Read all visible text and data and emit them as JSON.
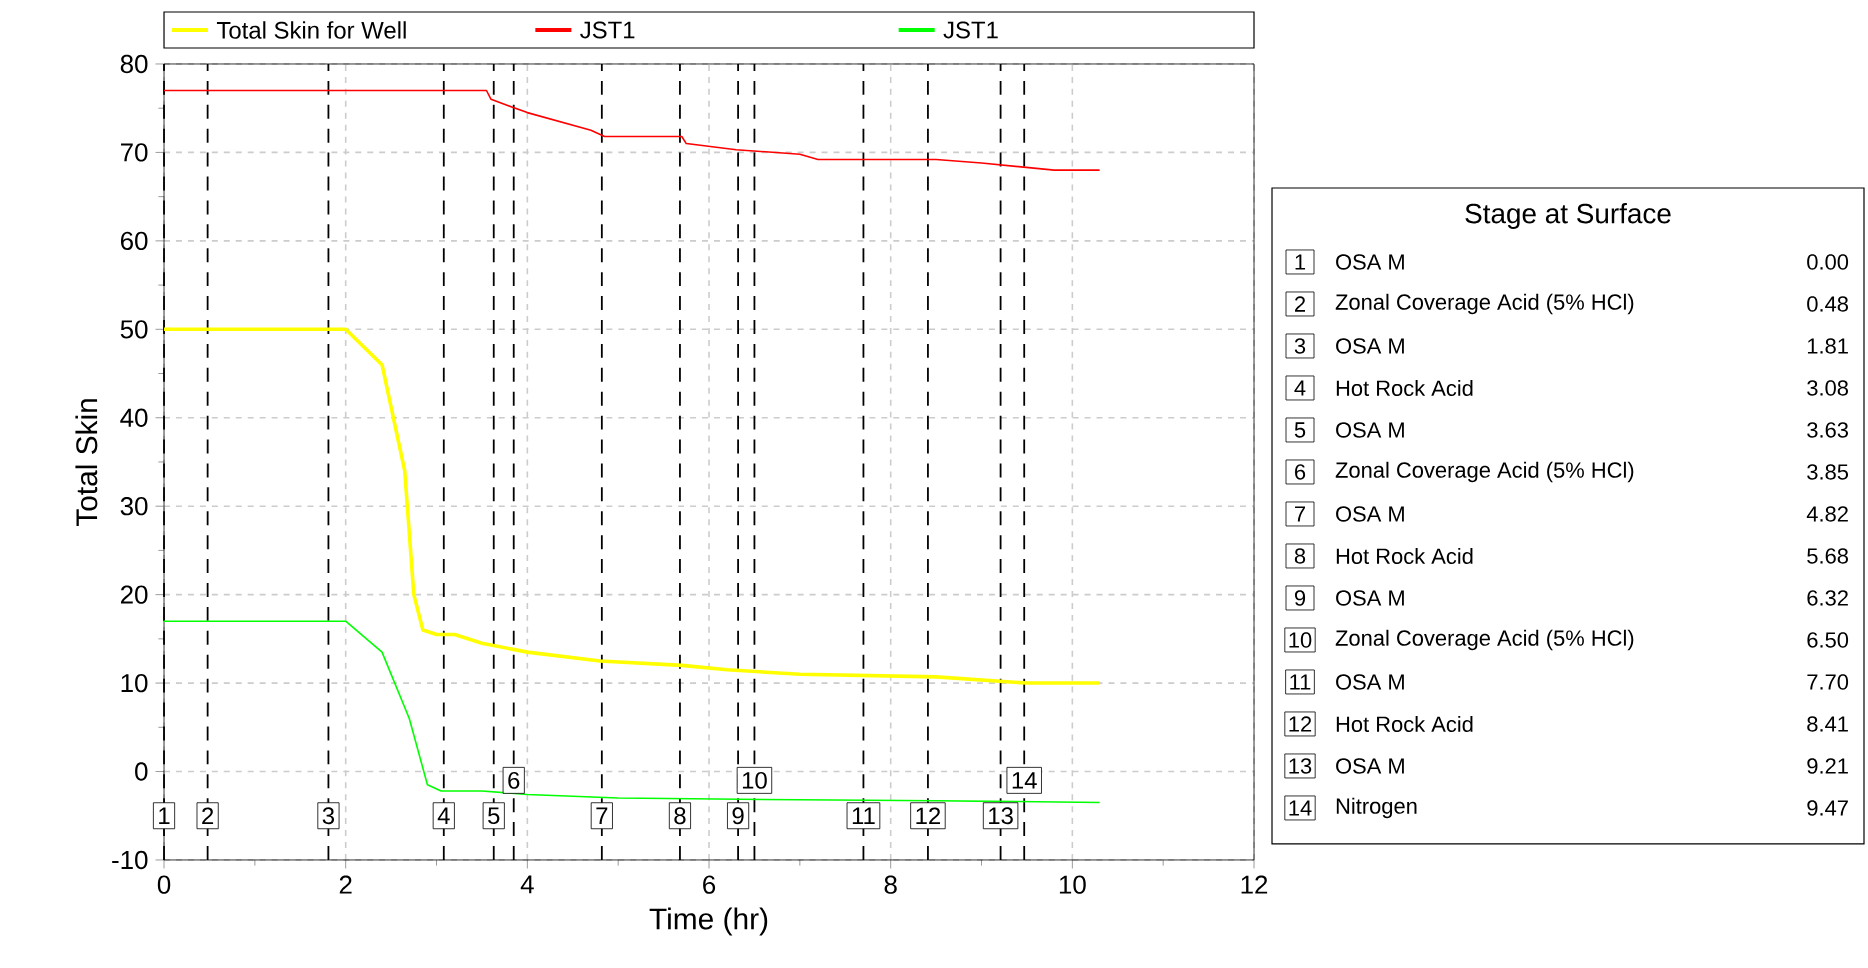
{
  "chart_data": {
    "type": "line",
    "xlabel": "Time (hr)",
    "ylabel": "Total Skin",
    "xlim": [
      0,
      12
    ],
    "xticks": [
      0,
      2,
      4,
      6,
      8,
      10,
      12
    ],
    "ylim": [
      -10,
      80
    ],
    "yticks": [
      -10,
      0,
      10,
      20,
      30,
      40,
      50,
      60,
      70,
      80
    ],
    "grid": true,
    "legend": "top",
    "marker": "none",
    "series": [
      {
        "name": "Total Skin for Well",
        "color": "#ffff00",
        "x": [
          0,
          2.0,
          2.4,
          2.65,
          2.75,
          2.85,
          3.0,
          3.2,
          3.5,
          4.0,
          4.8,
          5.7,
          6.2,
          7.0,
          8.5,
          9.5,
          10.3
        ],
        "values": [
          50,
          50,
          46,
          34,
          20,
          16,
          15.5,
          15.5,
          14.5,
          13.5,
          12.5,
          12,
          11.5,
          11,
          10.7,
          10,
          10
        ]
      },
      {
        "name": "JST1",
        "color": "#ff0000",
        "x": [
          0,
          3.55,
          3.6,
          4.0,
          4.7,
          4.85,
          5.7,
          5.75,
          6.3,
          7.0,
          7.2,
          8.5,
          9.0,
          9.8,
          10.3
        ],
        "values": [
          77,
          77,
          76,
          74.5,
          72.5,
          71.8,
          71.8,
          71,
          70.3,
          69.8,
          69.2,
          69.2,
          68.8,
          68,
          68
        ]
      },
      {
        "name": "JST1",
        "color": "#00ff00",
        "x": [
          0,
          2.0,
          2.4,
          2.7,
          2.9,
          3.05,
          3.5,
          4.0,
          5.0,
          7.0,
          8.5,
          10.3
        ],
        "values": [
          17,
          17,
          13.5,
          6,
          -1.5,
          -2.2,
          -2.2,
          -2.6,
          -3,
          -3.2,
          -3.3,
          -3.5
        ]
      }
    ],
    "ref_lines": [
      {
        "axis": "x",
        "value": 0.0,
        "color": "#000000",
        "line_style": "dashed"
      },
      {
        "axis": "x",
        "value": 0.48,
        "color": "#000000",
        "line_style": "dashed"
      },
      {
        "axis": "x",
        "value": 1.81,
        "color": "#000000",
        "line_style": "dashed"
      },
      {
        "axis": "x",
        "value": 3.08,
        "color": "#000000",
        "line_style": "dashed"
      },
      {
        "axis": "x",
        "value": 3.63,
        "color": "#000000",
        "line_style": "dashed"
      },
      {
        "axis": "x",
        "value": 3.85,
        "color": "#000000",
        "line_style": "dashed"
      },
      {
        "axis": "x",
        "value": 4.82,
        "color": "#000000",
        "line_style": "dashed"
      },
      {
        "axis": "x",
        "value": 5.68,
        "color": "#000000",
        "line_style": "dashed"
      },
      {
        "axis": "x",
        "value": 6.32,
        "color": "#000000",
        "line_style": "dashed"
      },
      {
        "axis": "x",
        "value": 6.5,
        "color": "#000000",
        "line_style": "dashed"
      },
      {
        "axis": "x",
        "value": 7.7,
        "color": "#000000",
        "line_style": "dashed"
      },
      {
        "axis": "x",
        "value": 8.41,
        "color": "#000000",
        "line_style": "dashed"
      },
      {
        "axis": "x",
        "value": 9.21,
        "color": "#000000",
        "line_style": "dashed"
      },
      {
        "axis": "x",
        "value": 9.47,
        "color": "#000000",
        "line_style": "dashed"
      }
    ],
    "annotations": [
      "Stage at Surface",
      "OSA M",
      "Zonal Coverage Acid (5% HCl)",
      "OSA M",
      "Hot Rock Acid",
      "OSA M",
      "Zonal Coverage Acid (5% HCl)",
      "OSA M",
      "Hot Rock Acid",
      "OSA M",
      "Zonal Coverage Acid (5% HCl)",
      "OSA M",
      "Hot Rock Acid",
      "OSA M",
      "Nitrogen",
      "0.00",
      "0.48",
      "1.81",
      "3.08",
      "3.63",
      "3.85",
      "4.82",
      "5.68",
      "6.32",
      "6.50",
      "7.70",
      "8.41",
      "9.21",
      "9.47",
      {
        "text": "1",
        "x": 0.0,
        "y": -5
      },
      {
        "text": "2",
        "x": 0.48,
        "y": -5
      },
      {
        "text": "3",
        "x": 1.81,
        "y": -5
      },
      {
        "text": "4",
        "x": 3.08,
        "y": -5
      },
      {
        "text": "5",
        "x": 3.63,
        "y": -5
      },
      {
        "text": "6",
        "x": 3.85,
        "y": -1
      },
      {
        "text": "7",
        "x": 4.82,
        "y": -5
      },
      {
        "text": "8",
        "x": 5.68,
        "y": -5
      },
      {
        "text": "9",
        "x": 6.32,
        "y": -5
      },
      {
        "text": "10",
        "x": 6.5,
        "y": -1
      },
      {
        "text": "11",
        "x": 7.7,
        "y": -5
      },
      {
        "text": "12",
        "x": 8.41,
        "y": -5
      },
      {
        "text": "13",
        "x": 9.21,
        "y": -5
      },
      {
        "text": "14",
        "x": 9.47,
        "y": -1
      }
    ]
  }
}
